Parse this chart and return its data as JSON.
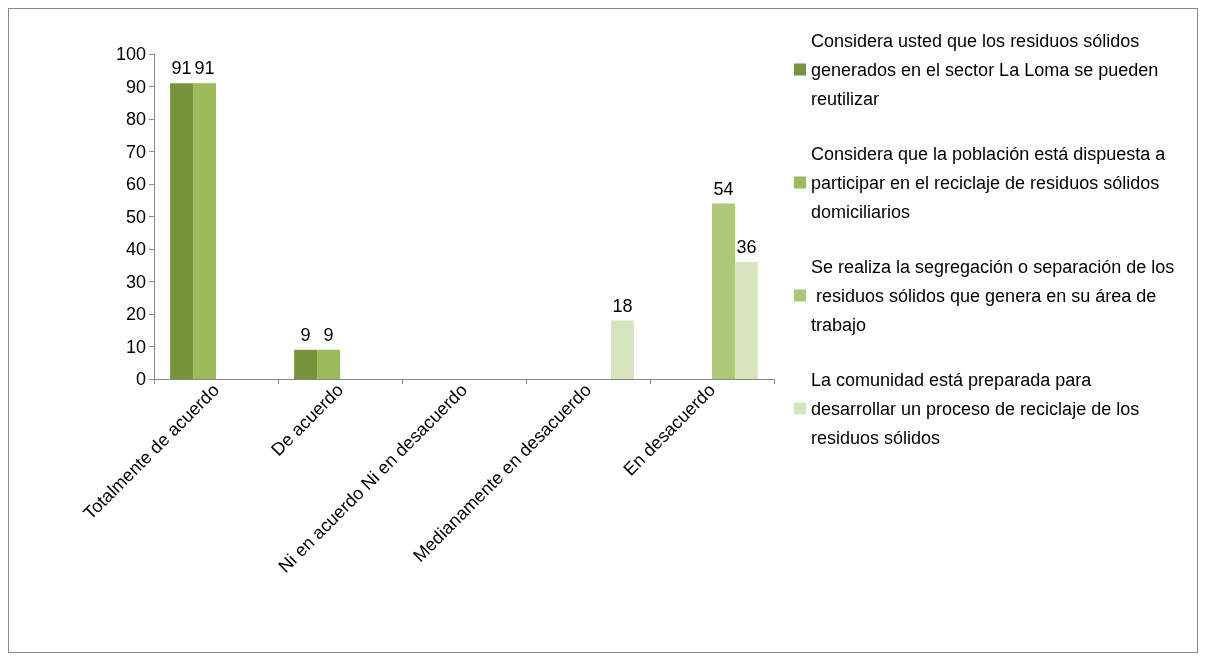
{
  "chart_data": {
    "type": "bar",
    "categories": [
      "Totalmente de acuerdo",
      "De acuerdo",
      "Ni en acuerdo Ni en desacuerdo",
      "Medianamente en desacuerdo",
      "En desacuerdo"
    ],
    "series": [
      {
        "name": "Considera usted que los residuos sólidos generados en el sector La Loma se pueden reutilizar",
        "color": "#77933c",
        "values": [
          91,
          9,
          null,
          null,
          null
        ]
      },
      {
        "name": "Considera que la población está dispuesta a participar en el reciclaje de residuos sólidos domiciliarios",
        "color": "#9bbb59",
        "values": [
          91,
          9,
          null,
          null,
          null
        ]
      },
      {
        "name": "Se realiza la segregación o separación de los residuos sólidos que genera en su área de trabajo",
        "color": "#adc978",
        "values": [
          null,
          null,
          null,
          null,
          54
        ]
      },
      {
        "name": "La comunidad está preparada para  desarrollar un proceso de reciclaje de los residuos sólidos",
        "color": "#d7e4bd",
        "values": [
          null,
          null,
          null,
          18,
          36
        ]
      }
    ],
    "ylim": [
      0,
      100
    ],
    "yticks": [
      0,
      10,
      20,
      30,
      40,
      50,
      60,
      70,
      80,
      90,
      100
    ],
    "grid": false,
    "legend": "right",
    "data_labels": true
  }
}
